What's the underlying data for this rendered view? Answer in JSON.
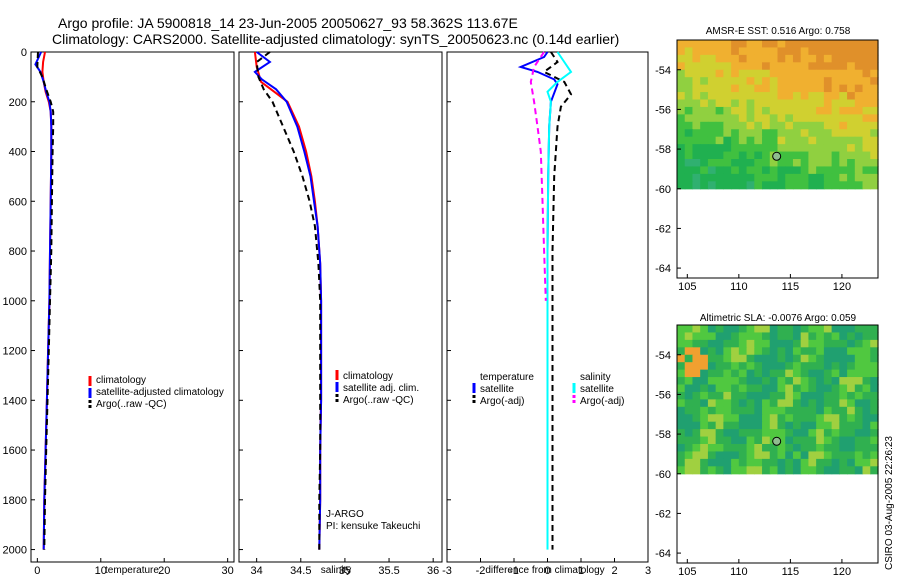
{
  "header": {
    "title_line1": "Argo profile: JA 5900818_14 23-Jun-2005 20050627_93 58.362S 113.67E",
    "title_line2": "Climatology: CARS2000. Satellite-adjusted climatology: synTS_20050623.nc (0.14d earlier)"
  },
  "side_label": "CSIRO 03-Aug-2005 22:26:23",
  "colors": {
    "climatology": "#ff0000",
    "satellite": "#0000ff",
    "argo": "#000000",
    "salinity": "#00ffff",
    "argo_adj_salinity": "#ff00ff"
  },
  "chart_data": [
    {
      "type": "line",
      "xlabel": "temperature",
      "ylabel": "",
      "xlim": [
        -1,
        31
      ],
      "ylim": [
        2050,
        0
      ],
      "x_ticks": [
        0,
        10,
        20,
        30
      ],
      "y_ticks": [
        0,
        200,
        400,
        600,
        800,
        1000,
        1200,
        1400,
        1600,
        1800,
        2000
      ],
      "legend": [
        "climatology",
        "satellite-adjusted climatology",
        "Argo(..raw -QC)"
      ],
      "series": [
        {
          "name": "climatology",
          "style": "solid",
          "color": "#ff0000",
          "points": [
            [
              1.2,
              0
            ],
            [
              0.9,
              40
            ],
            [
              0.8,
              80
            ],
            [
              1.0,
              120
            ],
            [
              1.3,
              160
            ],
            [
              1.8,
              200
            ],
            [
              2.1,
              240
            ],
            [
              2.2,
              300
            ],
            [
              2.2,
              400
            ],
            [
              2.1,
              600
            ],
            [
              2.0,
              800
            ],
            [
              1.9,
              1000
            ],
            [
              1.7,
              1200
            ],
            [
              1.5,
              1400
            ],
            [
              1.3,
              1600
            ],
            [
              1.1,
              1800
            ],
            [
              1.0,
              2000
            ]
          ]
        },
        {
          "name": "satellite-adjusted climatology",
          "style": "solid",
          "color": "#0000ff",
          "points": [
            [
              0.6,
              0
            ],
            [
              -0.3,
              50
            ],
            [
              0.5,
              80
            ],
            [
              1.0,
              120
            ],
            [
              1.4,
              160
            ],
            [
              1.9,
              200
            ],
            [
              2.1,
              240
            ],
            [
              2.2,
              300
            ],
            [
              2.2,
              400
            ],
            [
              2.1,
              600
            ],
            [
              2.0,
              800
            ],
            [
              1.9,
              1000
            ],
            [
              1.7,
              1200
            ],
            [
              1.5,
              1400
            ],
            [
              1.3,
              1600
            ],
            [
              1.1,
              1800
            ],
            [
              1.0,
              2000
            ]
          ]
        },
        {
          "name": "Argo(..raw -QC)",
          "style": "dashed",
          "color": "#000000",
          "points": [
            [
              0.1,
              0
            ],
            [
              0.0,
              60
            ],
            [
              0.8,
              100
            ],
            [
              1.4,
              150
            ],
            [
              2.1,
              200
            ],
            [
              2.5,
              240
            ],
            [
              2.5,
              300
            ],
            [
              2.4,
              400
            ],
            [
              2.3,
              600
            ],
            [
              2.2,
              800
            ],
            [
              2.0,
              1000
            ],
            [
              1.8,
              1200
            ],
            [
              1.6,
              1400
            ],
            [
              1.4,
              1600
            ],
            [
              1.2,
              1800
            ],
            [
              1.1,
              2000
            ]
          ]
        }
      ]
    },
    {
      "type": "line",
      "xlabel": "salinity",
      "ylabel": "",
      "xlim": [
        33.8,
        36.1
      ],
      "ylim": [
        2050,
        0
      ],
      "x_ticks": [
        34,
        34.5,
        35,
        35.5,
        36
      ],
      "y_ticks": [
        0,
        200,
        400,
        600,
        800,
        1000,
        1200,
        1400,
        1600,
        1800,
        2000
      ],
      "legend": [
        "climatology",
        "satellite adj. clim.",
        "Argo(..raw -QC)"
      ],
      "annotations": [
        "J-ARGO",
        "PI: kensuke Takeuchi"
      ],
      "series": [
        {
          "name": "climatology",
          "style": "solid",
          "color": "#ff0000",
          "points": [
            [
              33.98,
              0
            ],
            [
              34.0,
              60
            ],
            [
              34.05,
              120
            ],
            [
              34.2,
              160
            ],
            [
              34.35,
              200
            ],
            [
              34.48,
              300
            ],
            [
              34.56,
              400
            ],
            [
              34.62,
              500
            ],
            [
              34.66,
              600
            ],
            [
              34.69,
              700
            ],
            [
              34.72,
              850
            ],
            [
              34.73,
              1000
            ],
            [
              34.73,
              1200
            ],
            [
              34.73,
              1400
            ],
            [
              34.72,
              1600
            ],
            [
              34.72,
              1800
            ],
            [
              34.71,
              2000
            ]
          ]
        },
        {
          "name": "satellite adj. clim.",
          "style": "solid",
          "color": "#0000ff",
          "points": [
            [
              34.0,
              0
            ],
            [
              34.15,
              40
            ],
            [
              33.98,
              80
            ],
            [
              34.06,
              110
            ],
            [
              34.22,
              150
            ],
            [
              34.34,
              200
            ],
            [
              34.46,
              300
            ],
            [
              34.54,
              400
            ],
            [
              34.61,
              500
            ],
            [
              34.65,
              600
            ],
            [
              34.69,
              700
            ],
            [
              34.72,
              850
            ],
            [
              34.73,
              1000
            ],
            [
              34.73,
              1200
            ],
            [
              34.73,
              1400
            ],
            [
              34.72,
              1600
            ],
            [
              34.72,
              1800
            ],
            [
              34.71,
              2000
            ]
          ]
        },
        {
          "name": "Argo(..raw -QC)",
          "style": "dashed",
          "color": "#000000",
          "points": [
            [
              34.15,
              0
            ],
            [
              34.0,
              40
            ],
            [
              34.02,
              100
            ],
            [
              34.08,
              150
            ],
            [
              34.18,
              200
            ],
            [
              34.3,
              300
            ],
            [
              34.42,
              400
            ],
            [
              34.52,
              500
            ],
            [
              34.6,
              600
            ],
            [
              34.66,
              700
            ],
            [
              34.7,
              850
            ],
            [
              34.72,
              1000
            ],
            [
              34.72,
              1200
            ],
            [
              34.72,
              1400
            ],
            [
              34.72,
              1600
            ],
            [
              34.71,
              1800
            ],
            [
              34.71,
              2000
            ]
          ]
        }
      ]
    },
    {
      "type": "line",
      "xlabel": "difference from climatology",
      "ylabel": "",
      "xlim": [
        -3,
        3
      ],
      "ylim": [
        2050,
        0
      ],
      "x_ticks": [
        -3,
        -2,
        -1,
        0,
        1,
        2,
        3
      ],
      "y_ticks": [
        0,
        200,
        400,
        600,
        800,
        1000,
        1200,
        1400,
        1600,
        1800,
        2000
      ],
      "legend_groups": [
        {
          "title": "temperature",
          "items": [
            "satellite",
            "Argo(-adj)"
          ]
        },
        {
          "title": "salinity",
          "items": [
            "satellite",
            "Argo(-adj)"
          ]
        }
      ],
      "series": [
        {
          "name": "satellite",
          "group": "temperature",
          "style": "solid",
          "color": "#0000ff",
          "points": [
            [
              0.0,
              0
            ],
            [
              -0.1,
              20
            ],
            [
              -0.8,
              60
            ],
            [
              -0.3,
              80
            ],
            [
              0.2,
              110
            ],
            [
              0.3,
              130
            ],
            [
              0.1,
              200
            ],
            [
              0.05,
              300
            ],
            [
              0.02,
              500
            ],
            [
              0.0,
              800
            ],
            [
              0.0,
              1000
            ],
            [
              0.0,
              1200
            ],
            [
              0.0,
              1400
            ]
          ]
        },
        {
          "name": "Argo(-adj)",
          "group": "temperature",
          "style": "dashed",
          "color": "#000000",
          "points": [
            [
              0.1,
              0
            ],
            [
              0.3,
              40
            ],
            [
              -0.1,
              80
            ],
            [
              0.5,
              120
            ],
            [
              0.7,
              170
            ],
            [
              0.4,
              220
            ],
            [
              0.3,
              300
            ],
            [
              0.2,
              500
            ],
            [
              0.15,
              800
            ],
            [
              0.15,
              1000
            ],
            [
              0.15,
              1200
            ],
            [
              0.15,
              1400
            ],
            [
              0.15,
              1600
            ],
            [
              0.15,
              1800
            ],
            [
              0.15,
              2000
            ]
          ]
        },
        {
          "name": "satellite",
          "group": "salinity",
          "style": "solid",
          "color": "#00ffff",
          "points": [
            [
              0.3,
              0
            ],
            [
              0.5,
              40
            ],
            [
              0.7,
              80
            ],
            [
              0.3,
              120
            ],
            [
              0.0,
              160
            ],
            [
              0.1,
              200
            ],
            [
              0.05,
              300
            ],
            [
              0.02,
              500
            ],
            [
              0.0,
              800
            ],
            [
              0.0,
              1000
            ],
            [
              0.0,
              1200
            ],
            [
              0.0,
              1400
            ],
            [
              0.0,
              1600
            ],
            [
              0.0,
              1800
            ],
            [
              0.0,
              2000
            ]
          ]
        },
        {
          "name": "Argo(-adj)",
          "group": "salinity",
          "style": "dashed",
          "color": "#ff00ff",
          "points": [
            [
              -0.1,
              0
            ],
            [
              -0.4,
              60
            ],
            [
              -0.5,
              120
            ],
            [
              -0.4,
              200
            ],
            [
              -0.3,
              300
            ],
            [
              -0.2,
              400
            ],
            [
              -0.15,
              600
            ],
            [
              -0.1,
              800
            ],
            [
              -0.05,
              1000
            ]
          ]
        }
      ]
    },
    {
      "type": "heatmap",
      "title": "AMSR-E SST: 0.516 Argo: 0.758",
      "xlim": [
        104,
        123.5
      ],
      "ylim": [
        -64.5,
        -52.5
      ],
      "x_ticks": [
        105,
        110,
        115,
        120
      ],
      "y_ticks": [
        -54,
        -56,
        -58,
        -60,
        -62,
        -64
      ],
      "data_extent_lat": [
        -60,
        -52.5
      ],
      "marker": {
        "lon": 113.67,
        "lat": -58.362
      }
    },
    {
      "type": "heatmap",
      "title": "Altimetric SLA: -0.0076 Argo: 0.059",
      "xlim": [
        104,
        123.5
      ],
      "ylim": [
        -64.5,
        -52.5
      ],
      "x_ticks": [
        105,
        110,
        115,
        120
      ],
      "y_ticks": [
        -54,
        -56,
        -58,
        -60,
        -62,
        -64
      ],
      "data_extent_lat": [
        -60,
        -52.5
      ],
      "marker": {
        "lon": 113.67,
        "lat": -58.362
      }
    }
  ]
}
